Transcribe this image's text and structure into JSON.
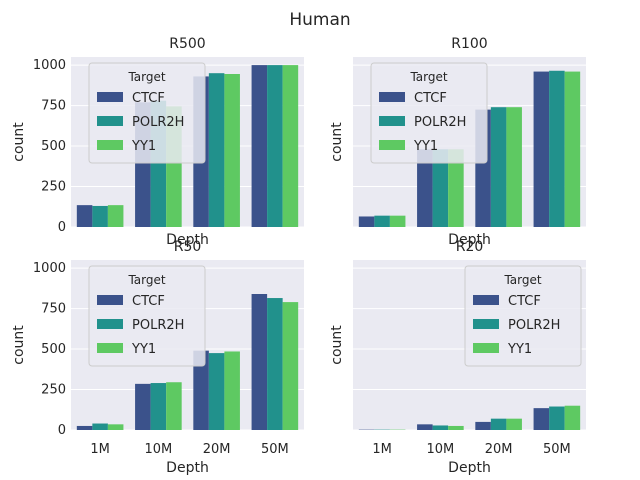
{
  "figure_title": "Human",
  "legend_title": "Target",
  "xlabel": "Depth",
  "ylabel": "count",
  "colors": {
    "background": "#eaeaf2",
    "grid": "#ffffff",
    "CTCF": "#3b528b",
    "POLR2H": "#21918c",
    "YY1": "#5ec962"
  },
  "chart_data": [
    {
      "type": "bar",
      "title": "R500",
      "categories": [
        "1M",
        "10M",
        "20M",
        "50M"
      ],
      "series": [
        {
          "name": "CTCF",
          "values": [
            135,
            770,
            930,
            1000
          ]
        },
        {
          "name": "POLR2H",
          "values": [
            130,
            780,
            950,
            1000
          ]
        },
        {
          "name": "YY1",
          "values": [
            135,
            745,
            945,
            1000
          ]
        }
      ],
      "xlabel": "Depth",
      "ylabel": "count",
      "ylim": [
        0,
        1050
      ],
      "yticks": [
        0,
        250,
        500,
        750,
        1000
      ],
      "show_xticklabels": false,
      "show_yticklabels": true,
      "legend_position": "upper-left"
    },
    {
      "type": "bar",
      "title": "R100",
      "categories": [
        "1M",
        "10M",
        "20M",
        "50M"
      ],
      "series": [
        {
          "name": "CTCF",
          "values": [
            65,
            480,
            725,
            960
          ]
        },
        {
          "name": "POLR2H",
          "values": [
            70,
            480,
            740,
            965
          ]
        },
        {
          "name": "YY1",
          "values": [
            70,
            480,
            740,
            960
          ]
        }
      ],
      "xlabel": "Depth",
      "ylabel": "count",
      "ylim": [
        0,
        1050
      ],
      "yticks": [
        0,
        250,
        500,
        750,
        1000
      ],
      "show_xticklabels": false,
      "show_yticklabels": false,
      "legend_position": "upper-left"
    },
    {
      "type": "bar",
      "title": "R50",
      "categories": [
        "1M",
        "10M",
        "20M",
        "50M"
      ],
      "series": [
        {
          "name": "CTCF",
          "values": [
            25,
            285,
            490,
            840
          ]
        },
        {
          "name": "POLR2H",
          "values": [
            40,
            290,
            475,
            815
          ]
        },
        {
          "name": "YY1",
          "values": [
            35,
            295,
            485,
            790
          ]
        }
      ],
      "xlabel": "Depth",
      "ylabel": "count",
      "ylim": [
        0,
        1050
      ],
      "yticks": [
        0,
        250,
        500,
        750,
        1000
      ],
      "show_xticklabels": true,
      "show_yticklabels": true,
      "legend_position": "upper-left"
    },
    {
      "type": "bar",
      "title": "R20",
      "categories": [
        "1M",
        "10M",
        "20M",
        "50M"
      ],
      "series": [
        {
          "name": "CTCF",
          "values": [
            2,
            35,
            50,
            135
          ]
        },
        {
          "name": "POLR2H",
          "values": [
            2,
            28,
            70,
            145
          ]
        },
        {
          "name": "YY1",
          "values": [
            2,
            25,
            70,
            150
          ]
        }
      ],
      "xlabel": "Depth",
      "ylabel": "count",
      "ylim": [
        0,
        1050
      ],
      "yticks": [
        0,
        250,
        500,
        750,
        1000
      ],
      "show_xticklabels": true,
      "show_yticklabels": false,
      "legend_position": "upper-right"
    }
  ]
}
